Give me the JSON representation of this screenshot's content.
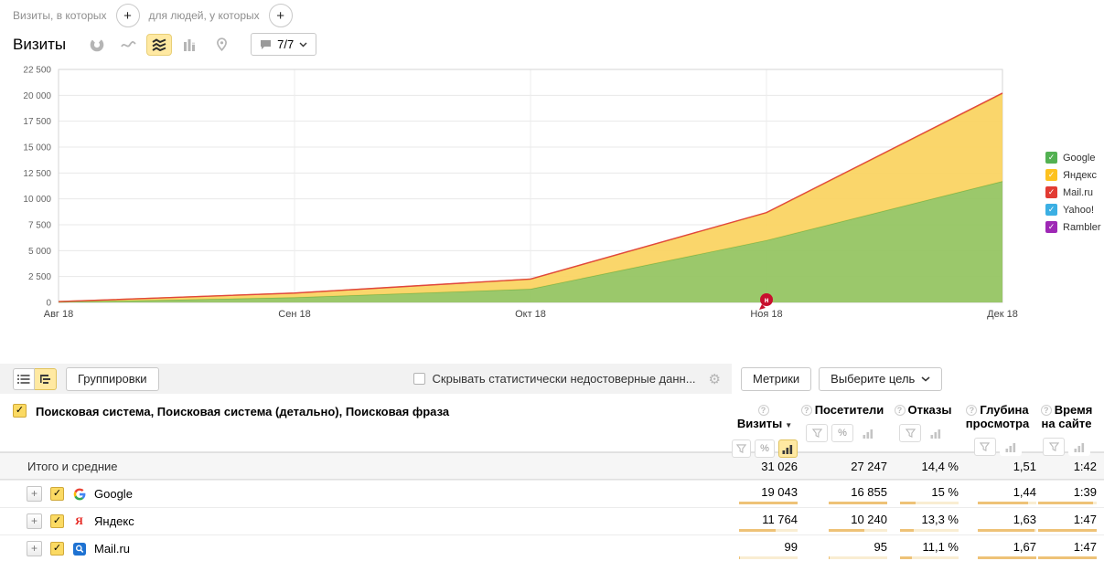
{
  "icons": {
    "plus": "+",
    "check": "✓",
    "percent": "%",
    "help": "?",
    "gear": "⚙",
    "sort_desc": "▼"
  },
  "filter_bar": {
    "visits_condition_label": "Визиты, в которых",
    "people_condition_label": "для людей, у которых"
  },
  "chart_header": {
    "title": "Визиты",
    "period_selector": "7/7"
  },
  "chart_data": {
    "type": "area",
    "stacked": true,
    "title": "Визиты",
    "x": [
      "Авг 18",
      "Сен 18",
      "Окт 18",
      "Ноя 18",
      "Дек 18"
    ],
    "ylim": [
      0,
      22500
    ],
    "ytick_step": 2500,
    "grid": true,
    "legend_position": "right",
    "series": [
      {
        "name": "Google",
        "color": "#92c35e",
        "line": "#7eb54b",
        "legend_color": "#53b152",
        "values": [
          40,
          480,
          1300,
          6000,
          11700
        ]
      },
      {
        "name": "Яндекс",
        "color": "#fad35e",
        "line": "#f3c93e",
        "legend_color": "#fdc220",
        "values": [
          40,
          420,
          950,
          2650,
          8450
        ]
      },
      {
        "name": "Mail.ru",
        "color": "#e0463e",
        "line": "#e0463e",
        "legend_color": "#e23b33",
        "values": [
          0,
          4,
          10,
          30,
          70
        ]
      },
      {
        "name": "Yahoo!",
        "color": "#3bafe3",
        "line": "#3bafe3",
        "legend_color": "#3bafe3",
        "values": [
          0,
          0,
          0,
          0,
          0
        ]
      },
      {
        "name": "Rambler",
        "color": "#9e28b5",
        "line": "#9e28b5",
        "legend_color": "#9e28b5",
        "values": [
          0,
          0,
          0,
          0,
          0
        ]
      }
    ],
    "note_marker": {
      "x_index": 3,
      "label": "н"
    }
  },
  "toolbar": {
    "groupings_button": "Группировки",
    "hide_unreliable_label": "Скрывать статистически недостоверные данн...",
    "metrics_button": "Метрики",
    "goal_button": "Выберите цель"
  },
  "table": {
    "dimension_header": "Поисковая система, Поисковая система (детально), Поисковая фраза",
    "columns": [
      {
        "label": "Визиты"
      },
      {
        "label": "Посетители"
      },
      {
        "label": "Отказы"
      },
      {
        "label": "Глубина просмотра"
      },
      {
        "label": "Время на сайте"
      }
    ],
    "totals": {
      "label": "Итого и средние",
      "visits": "31 026",
      "visitors": "27 247",
      "bounce": "14,4 %",
      "depth": "1,51",
      "time": "1:42"
    },
    "rows": [
      {
        "label": "Google",
        "visits": "19 043",
        "visitors": "16 855",
        "bounce": "15 %",
        "depth": "1,44",
        "time": "1:39",
        "bars": {
          "visits": 1,
          "visitors": 1,
          "bounce": 0.27,
          "depth": 0.86,
          "time": 0.93
        }
      },
      {
        "label": "Яндекс",
        "visits": "11 764",
        "visitors": "10 240",
        "bounce": "13,3 %",
        "depth": "1,63",
        "time": "1:47",
        "bars": {
          "visits": 0.62,
          "visitors": 0.61,
          "bounce": 0.24,
          "depth": 0.97,
          "time": 1
        }
      },
      {
        "label": "Mail.ru",
        "visits": "99",
        "visitors": "95",
        "bounce": "11,1 %",
        "depth": "1,67",
        "time": "1:47",
        "bars": {
          "visits": 0.012,
          "visitors": 0.012,
          "bounce": 0.2,
          "depth": 1,
          "time": 1
        }
      }
    ]
  }
}
